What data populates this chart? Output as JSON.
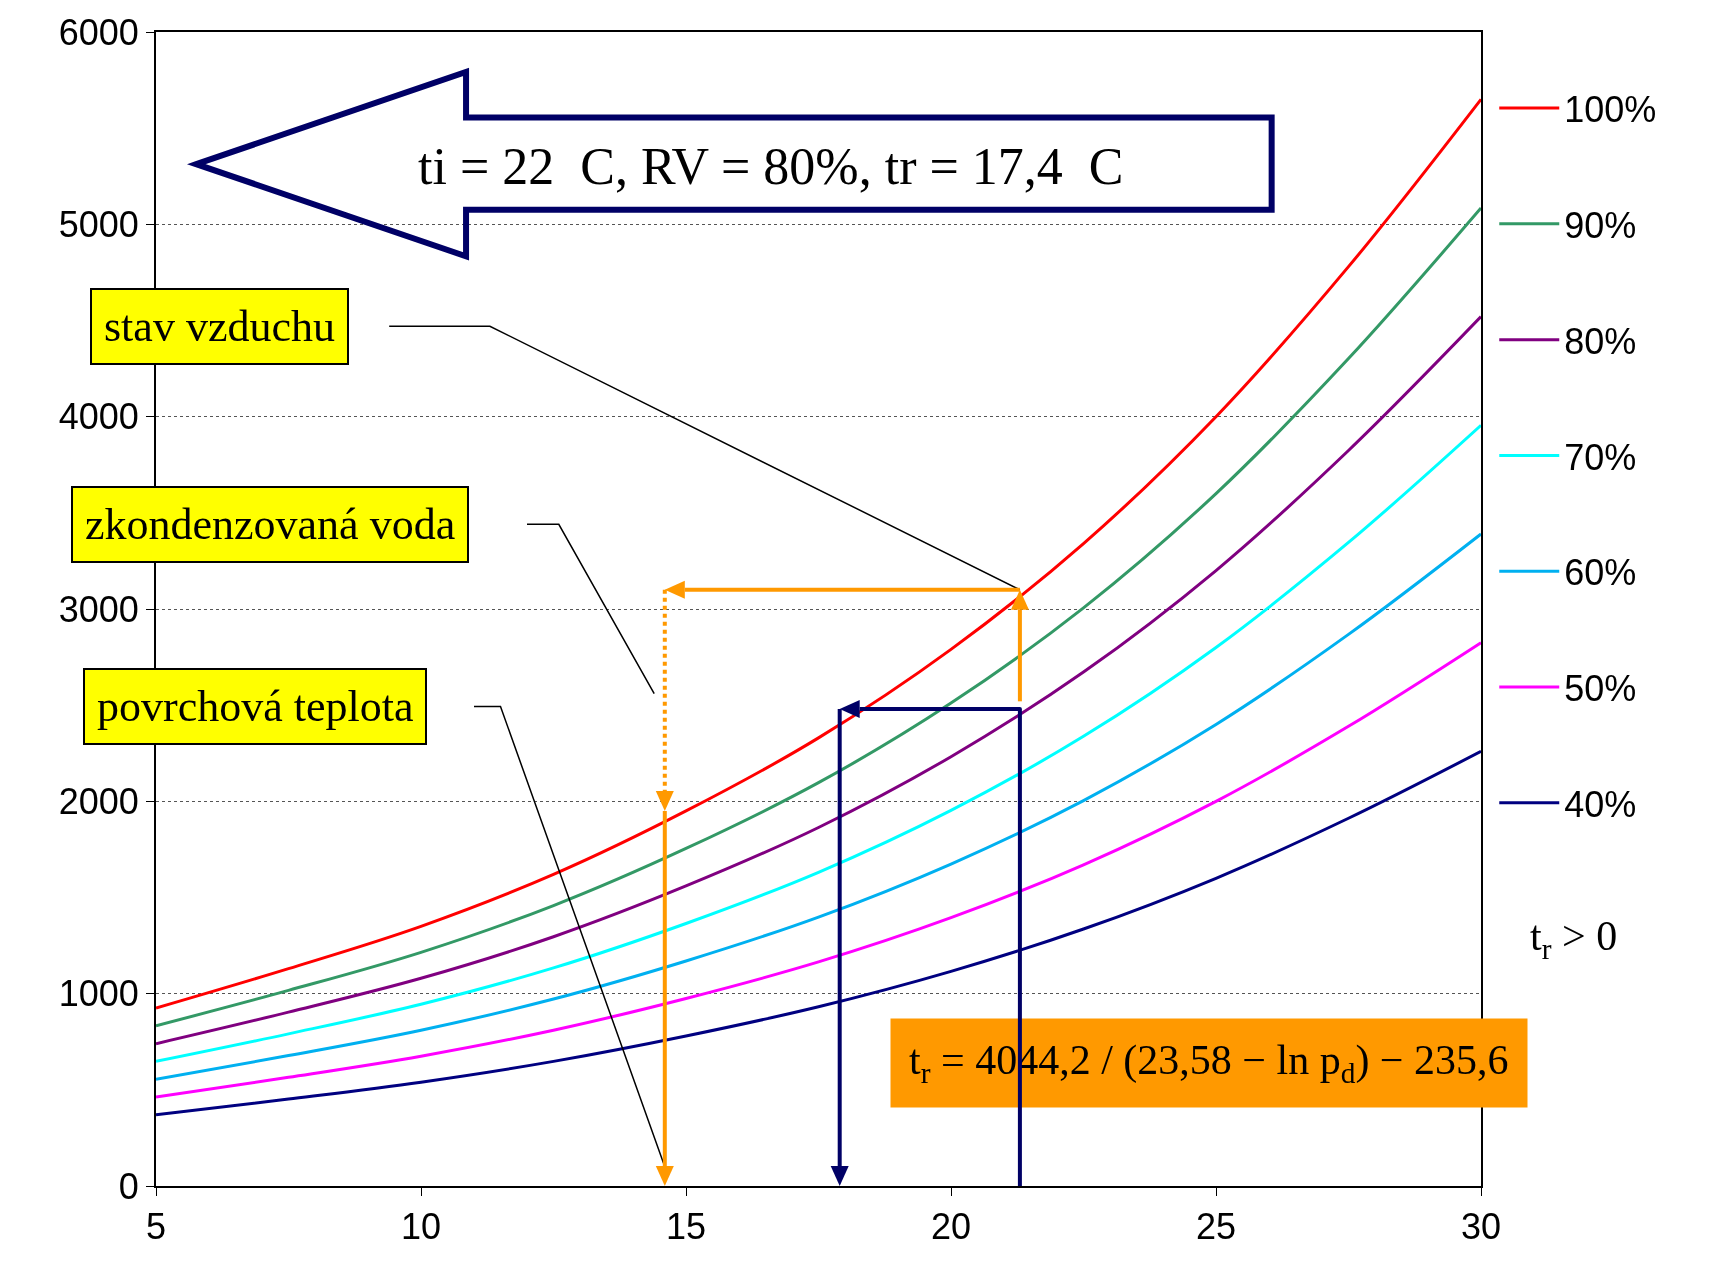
{
  "chart_data": {
    "type": "line",
    "x": [
      5,
      7.5,
      10,
      12.5,
      15,
      17.5,
      20,
      22.5,
      25,
      27.5,
      30
    ],
    "xlim": [
      5,
      30
    ],
    "xticks": [
      5,
      10,
      15,
      20,
      25,
      30
    ],
    "ylim": [
      0,
      6000
    ],
    "yticks": [
      0,
      1000,
      2000,
      3000,
      4000,
      5000,
      6000
    ],
    "grid": "y",
    "legend": "right",
    "series": [
      {
        "name": "100%",
        "color": "#ff0000",
        "values": [
          925,
          1130,
          1350,
          1620,
          1950,
          2330,
          2790,
          3340,
          4000,
          4780,
          5650
        ]
      },
      {
        "name": "90%",
        "color": "#339966",
        "values": [
          833,
          1017,
          1215,
          1458,
          1755,
          2097,
          2511,
          3006,
          3600,
          4302,
          5085
        ]
      },
      {
        "name": "80%",
        "color": "#800080",
        "values": [
          740,
          904,
          1080,
          1296,
          1560,
          1864,
          2232,
          2672,
          3200,
          3824,
          4520
        ]
      },
      {
        "name": "70%",
        "color": "#00ffff",
        "values": [
          648,
          791,
          945,
          1134,
          1365,
          1631,
          1953,
          2338,
          2800,
          3346,
          3955
        ]
      },
      {
        "name": "60%",
        "color": "#00b0f0",
        "values": [
          555,
          678,
          810,
          972,
          1170,
          1398,
          1674,
          2004,
          2400,
          2868,
          3390
        ]
      },
      {
        "name": "50%",
        "color": "#ff00ff",
        "values": [
          463,
          565,
          675,
          810,
          975,
          1165,
          1395,
          1670,
          2000,
          2390,
          2825
        ]
      },
      {
        "name": "40%",
        "color": "#000080",
        "values": [
          370,
          452,
          540,
          648,
          780,
          932,
          1116,
          1336,
          1600,
          1912,
          2260
        ]
      }
    ],
    "annotations": [
      "stav vzduchu",
      "zkondenzovaná voda",
      "povrchová teplota",
      "ti = 22  C, RV = 80%, tr = 17,4  C",
      "t$_{r}$ = 4044,2 / (23,58 − ln p$_{d}$) − 235,6",
      "t$_{r}$ > 0"
    ]
  }
}
